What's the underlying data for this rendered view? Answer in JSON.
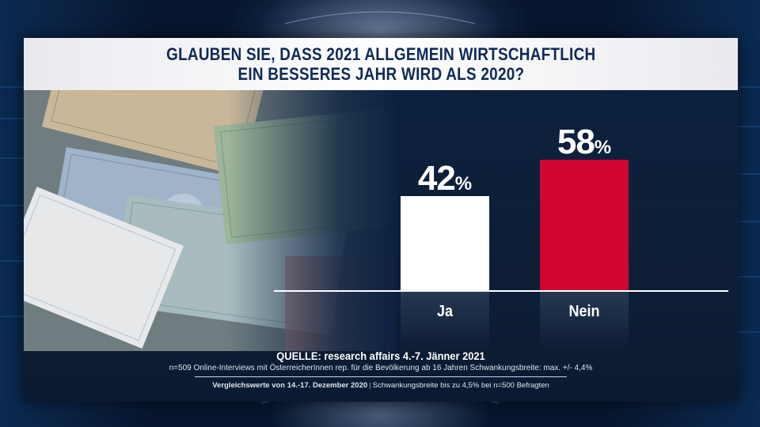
{
  "title": {
    "line1": "GLAUBEN SIE, DASS 2021 ALLGEMEIN WIRTSCHAFTLICH",
    "line2": "EIN BESSERES JAHR WIRD ALS 2020?"
  },
  "footer": {
    "source": "QUELLE: research affairs 4.-7. Jänner 2021",
    "note1": "n=509 Online-Interviews mit ÖsterreicherInnen rep. für die Bevölkerung ab 16 Jahren  Schwankungsbreite: max. +/- 4,4%",
    "note2_bold": "Vergleichswerte von 14.-17. Dezember 2020",
    "note2_rest": "Schwankungsbreite bis zu 4,5% bei n=500 Befragten"
  },
  "colors": {
    "ja": "#ffffff",
    "nein": "#d0062e",
    "title_text": "#0d2a55"
  },
  "chart_data": {
    "type": "bar",
    "title": "GLAUBEN SIE, DASS 2021 ALLGEMEIN WIRTSCHAFTLICH EIN BESSERES JAHR WIRD ALS 2020?",
    "categories": [
      "Ja",
      "Nein"
    ],
    "values": [
      42,
      58
    ],
    "unit": "%",
    "ylim": [
      0,
      100
    ],
    "grid": false,
    "legend": "none",
    "labels": [
      {
        "number": "42",
        "unit": "%"
      },
      {
        "number": "58",
        "unit": "%"
      }
    ]
  }
}
